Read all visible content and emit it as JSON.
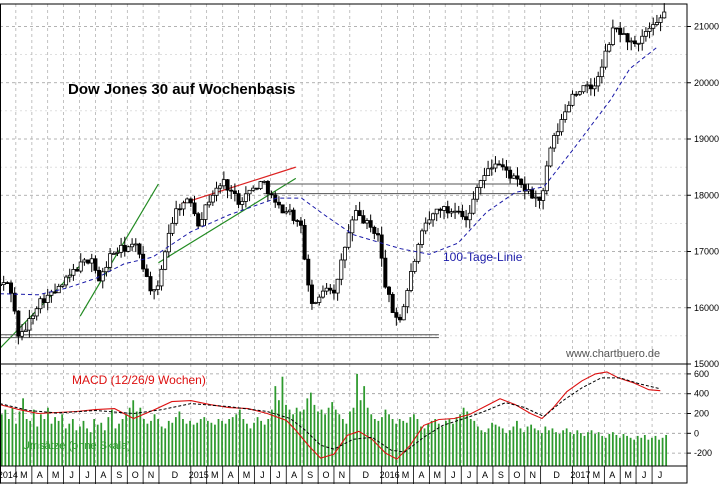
{
  "chart_data": [
    {
      "type": "candlestick",
      "title": "Dow Jones 30 auf Wochenbasis",
      "watermark": "www.chartbuero.de",
      "ylim": [
        15000,
        21400
      ],
      "yticks": [
        15000,
        16000,
        17000,
        18000,
        19000,
        20000,
        21000
      ],
      "grid": true,
      "grid_style": "dashed",
      "candle_colors": {
        "up": "#ffffff",
        "down": "#000000",
        "outline": "#000000"
      },
      "series": [
        {
          "name": "100-Tage-Linie",
          "color": "#1a1aa8",
          "style": "dashed",
          "points": [
            [
              2014.0,
              16250
            ],
            [
              2014.2,
              16230
            ],
            [
              2014.35,
              16350
            ],
            [
              2014.5,
              16520
            ],
            [
              2014.65,
              16780
            ],
            [
              2014.8,
              16900
            ],
            [
              2015.0,
              17350
            ],
            [
              2015.2,
              17650
            ],
            [
              2015.45,
              17950
            ],
            [
              2015.58,
              17950
            ],
            [
              2015.7,
              17650
            ],
            [
              2015.85,
              17300
            ],
            [
              2016.0,
              17150
            ],
            [
              2016.1,
              17050
            ],
            [
              2016.25,
              16950
            ],
            [
              2016.4,
              17150
            ],
            [
              2016.55,
              17700
            ],
            [
              2016.7,
              18050
            ],
            [
              2016.85,
              18150
            ],
            [
              2017.0,
              18800
            ],
            [
              2017.2,
              19700
            ],
            [
              2017.3,
              20250
            ],
            [
              2017.45,
              20650
            ]
          ]
        }
      ],
      "lines": [
        {
          "kind": "trend",
          "color": "#228b22",
          "points": [
            [
              2014.0,
              15280
            ],
            [
              2014.42,
              16750
            ]
          ]
        },
        {
          "kind": "trend",
          "color": "#228b22",
          "points": [
            [
              2014.42,
              15850
            ],
            [
              2014.83,
              18200
            ]
          ]
        },
        {
          "kind": "trend",
          "color": "#228b22",
          "points": [
            [
              2014.83,
              16800
            ],
            [
              2015.55,
              18300
            ]
          ]
        },
        {
          "kind": "trend",
          "color": "#dd2222",
          "points": [
            [
              2014.95,
              17850
            ],
            [
              2015.55,
              18500
            ]
          ]
        },
        {
          "kind": "horizontal",
          "color": "#555555",
          "y": 18200,
          "x": [
            2015.38,
            2016.87
          ]
        },
        {
          "kind": "horizontal",
          "color": "#555555",
          "y": 18030,
          "x": [
            2015.38,
            2016.87
          ]
        },
        {
          "kind": "horizontal",
          "color": "#555555",
          "y": 15520,
          "x": [
            2014.0,
            2016.3
          ]
        },
        {
          "kind": "horizontal",
          "color": "#555555",
          "y": 15470,
          "x": [
            2014.0,
            2016.3
          ]
        }
      ],
      "annotations": [
        {
          "text": "100-Tage-Linie",
          "color": "#1a1aa8",
          "at": [
            2016.32,
            16650
          ]
        },
        {
          "text": "Dow Jones 30 auf Wochenbasis",
          "color": "#000000",
          "at": [
            2014.3,
            20800
          ]
        },
        {
          "text": "www.chartbuero.de",
          "color": "#555555",
          "at": [
            2016.92,
            15090
          ]
        }
      ],
      "price_path": [
        [
          2014.0,
          16400
        ],
        [
          2014.05,
          16450
        ],
        [
          2014.1,
          15450
        ],
        [
          2014.13,
          15600
        ],
        [
          2014.2,
          16100
        ],
        [
          2014.3,
          16300
        ],
        [
          2014.4,
          16700
        ],
        [
          2014.48,
          16900
        ],
        [
          2014.52,
          16450
        ],
        [
          2014.58,
          16950
        ],
        [
          2014.64,
          17050
        ],
        [
          2014.72,
          17100
        ],
        [
          2014.78,
          16400
        ],
        [
          2014.82,
          16200
        ],
        [
          2014.88,
          17300
        ],
        [
          2014.93,
          17800
        ],
        [
          2015.0,
          17900
        ],
        [
          2015.04,
          17500
        ],
        [
          2015.1,
          17950
        ],
        [
          2015.17,
          18250
        ],
        [
          2015.25,
          17900
        ],
        [
          2015.32,
          18100
        ],
        [
          2015.38,
          18250
        ],
        [
          2015.45,
          17800
        ],
        [
          2015.52,
          17700
        ],
        [
          2015.58,
          17400
        ],
        [
          2015.62,
          16200
        ],
        [
          2015.65,
          16000
        ],
        [
          2015.7,
          16400
        ],
        [
          2015.76,
          16300
        ],
        [
          2015.8,
          17000
        ],
        [
          2015.86,
          17700
        ],
        [
          2015.92,
          17500
        ],
        [
          2015.98,
          17300
        ],
        [
          2016.02,
          16400
        ],
        [
          2016.06,
          15900
        ],
        [
          2016.1,
          15800
        ],
        [
          2016.16,
          16700
        ],
        [
          2016.22,
          17400
        ],
        [
          2016.3,
          17800
        ],
        [
          2016.35,
          17700
        ],
        [
          2016.4,
          17800
        ],
        [
          2016.45,
          17500
        ],
        [
          2016.5,
          18200
        ],
        [
          2016.55,
          18400
        ],
        [
          2016.6,
          18600
        ],
        [
          2016.66,
          18400
        ],
        [
          2016.72,
          18200
        ],
        [
          2016.78,
          18000
        ],
        [
          2016.84,
          17900
        ],
        [
          2016.88,
          18800
        ],
        [
          2016.94,
          19300
        ],
        [
          2017.0,
          19800
        ],
        [
          2017.05,
          19900
        ],
        [
          2017.1,
          19900
        ],
        [
          2017.14,
          20100
        ],
        [
          2017.18,
          20600
        ],
        [
          2017.22,
          21000
        ],
        [
          2017.28,
          20800
        ],
        [
          2017.34,
          20600
        ],
        [
          2017.38,
          20900
        ],
        [
          2017.44,
          21000
        ],
        [
          2017.48,
          21250
        ]
      ],
      "x_axis": {
        "range": [
          2014.0,
          2017.6
        ],
        "ticks": [
          {
            "x": 2014.0,
            "label": "2014"
          },
          {
            "x": 2014.083,
            "label": "M"
          },
          {
            "x": 2014.167,
            "label": "A"
          },
          {
            "x": 2014.25,
            "label": "M"
          },
          {
            "x": 2014.333,
            "label": "J"
          },
          {
            "x": 2014.417,
            "label": "J"
          },
          {
            "x": 2014.5,
            "label": "A"
          },
          {
            "x": 2014.583,
            "label": "S"
          },
          {
            "x": 2014.667,
            "label": "O"
          },
          {
            "x": 2014.75,
            "label": "N"
          },
          {
            "x": 2014.833,
            "label": "D"
          },
          {
            "x": 2015.0,
            "label": "2015"
          },
          {
            "x": 2015.083,
            "label": "M"
          },
          {
            "x": 2015.167,
            "label": "A"
          },
          {
            "x": 2015.25,
            "label": "M"
          },
          {
            "x": 2015.333,
            "label": "J"
          },
          {
            "x": 2015.417,
            "label": "J"
          },
          {
            "x": 2015.5,
            "label": "A"
          },
          {
            "x": 2015.583,
            "label": "S"
          },
          {
            "x": 2015.667,
            "label": "O"
          },
          {
            "x": 2015.75,
            "label": "N"
          },
          {
            "x": 2015.833,
            "label": "D"
          },
          {
            "x": 2016.0,
            "label": "2016"
          },
          {
            "x": 2016.083,
            "label": "M"
          },
          {
            "x": 2016.167,
            "label": "A"
          },
          {
            "x": 2016.25,
            "label": "M"
          },
          {
            "x": 2016.333,
            "label": "J"
          },
          {
            "x": 2016.417,
            "label": "J"
          },
          {
            "x": 2016.5,
            "label": "A"
          },
          {
            "x": 2016.583,
            "label": "S"
          },
          {
            "x": 2016.667,
            "label": "O"
          },
          {
            "x": 2016.75,
            "label": "N"
          },
          {
            "x": 2016.833,
            "label": "D"
          },
          {
            "x": 2017.0,
            "label": "2017"
          },
          {
            "x": 2017.083,
            "label": "M"
          },
          {
            "x": 2017.167,
            "label": "A"
          },
          {
            "x": 2017.25,
            "label": "M"
          },
          {
            "x": 2017.333,
            "label": "J"
          },
          {
            "x": 2017.417,
            "label": "J"
          }
        ]
      }
    },
    {
      "type": "line+bar",
      "title": "MACD (12/26/9 Wochen)",
      "ylim": [
        -330,
        700
      ],
      "yticks": [
        -200,
        0,
        200,
        400,
        600
      ],
      "grid": true,
      "grid_style": "dashed",
      "series": [
        {
          "name": "MACD (12/26/9 Wochen)",
          "color": "#dd1111",
          "style": "solid",
          "points": [
            [
              2014.0,
              290
            ],
            [
              2014.1,
              240
            ],
            [
              2014.2,
              200
            ],
            [
              2014.3,
              210
            ],
            [
              2014.4,
              220
            ],
            [
              2014.5,
              240
            ],
            [
              2014.6,
              250
            ],
            [
              2014.7,
              150
            ],
            [
              2014.8,
              230
            ],
            [
              2014.9,
              320
            ],
            [
              2015.0,
              330
            ],
            [
              2015.1,
              290
            ],
            [
              2015.2,
              260
            ],
            [
              2015.3,
              250
            ],
            [
              2015.4,
              200
            ],
            [
              2015.5,
              130
            ],
            [
              2015.55,
              30
            ],
            [
              2015.62,
              -130
            ],
            [
              2015.68,
              -250
            ],
            [
              2015.75,
              -210
            ],
            [
              2015.82,
              -20
            ],
            [
              2015.88,
              20
            ],
            [
              2015.95,
              -60
            ],
            [
              2016.02,
              -200
            ],
            [
              2016.08,
              -260
            ],
            [
              2016.15,
              -120
            ],
            [
              2016.22,
              80
            ],
            [
              2016.3,
              140
            ],
            [
              2016.38,
              150
            ],
            [
              2016.46,
              190
            ],
            [
              2016.55,
              280
            ],
            [
              2016.62,
              350
            ],
            [
              2016.7,
              290
            ],
            [
              2016.78,
              200
            ],
            [
              2016.84,
              150
            ],
            [
              2016.9,
              260
            ],
            [
              2016.97,
              420
            ],
            [
              2017.05,
              530
            ],
            [
              2017.12,
              600
            ],
            [
              2017.18,
              620
            ],
            [
              2017.24,
              560
            ],
            [
              2017.32,
              510
            ],
            [
              2017.4,
              440
            ],
            [
              2017.46,
              430
            ]
          ]
        },
        {
          "name": "",
          "color": "#000000",
          "style": "dashed",
          "points": [
            [
              2014.0,
              300
            ],
            [
              2014.15,
              230
            ],
            [
              2014.3,
              205
            ],
            [
              2014.5,
              230
            ],
            [
              2014.7,
              200
            ],
            [
              2014.85,
              240
            ],
            [
              2015.0,
              300
            ],
            [
              2015.2,
              270
            ],
            [
              2015.4,
              220
            ],
            [
              2015.52,
              150
            ],
            [
              2015.6,
              30
            ],
            [
              2015.68,
              -120
            ],
            [
              2015.75,
              -160
            ],
            [
              2015.85,
              -60
            ],
            [
              2015.95,
              -40
            ],
            [
              2016.05,
              -170
            ],
            [
              2016.12,
              -190
            ],
            [
              2016.22,
              -40
            ],
            [
              2016.32,
              80
            ],
            [
              2016.45,
              160
            ],
            [
              2016.55,
              230
            ],
            [
              2016.65,
              310
            ],
            [
              2016.75,
              260
            ],
            [
              2016.85,
              170
            ],
            [
              2016.95,
              330
            ],
            [
              2017.05,
              460
            ],
            [
              2017.15,
              560
            ],
            [
              2017.25,
              560
            ],
            [
              2017.35,
              500
            ],
            [
              2017.46,
              450
            ]
          ]
        }
      ],
      "volume_label": "Umsätze (ohne Skala)",
      "volume_color": "#2e9a2e",
      "volume_relative": [
        0.55,
        0.6,
        0.5,
        0.62,
        0.45,
        0.58,
        0.72,
        0.5,
        0.48,
        0.6,
        0.42,
        0.55,
        0.5,
        0.62,
        0.45,
        0.52,
        0.48,
        0.55,
        0.4,
        0.45,
        0.5,
        0.38,
        0.42,
        0.48,
        0.4,
        0.36,
        0.5,
        0.44,
        0.46,
        0.38,
        0.52,
        0.6,
        0.4,
        0.45,
        0.5,
        0.55,
        0.62,
        0.7,
        0.58,
        0.62,
        0.5,
        0.45,
        0.48,
        0.55,
        0.5,
        0.42,
        0.4,
        0.48,
        0.46,
        0.52,
        0.58,
        0.5,
        0.45,
        0.48,
        0.44,
        0.46,
        0.5,
        0.52,
        0.48,
        0.46,
        0.44,
        0.5,
        0.48,
        0.45,
        0.5,
        0.52,
        0.55,
        0.6,
        0.5,
        0.45,
        0.4,
        0.46,
        0.52,
        0.48,
        0.44,
        0.5,
        0.6,
        0.85,
        0.7,
        0.95,
        0.65,
        0.6,
        0.55,
        0.62,
        0.58,
        0.6,
        0.72,
        0.78,
        0.65,
        0.58,
        0.6,
        0.55,
        0.62,
        0.68,
        0.6,
        0.55,
        0.5,
        0.45,
        0.58,
        0.62,
        0.98,
        0.7,
        0.85,
        0.62,
        0.55,
        0.5,
        0.48,
        0.52,
        0.6,
        0.55,
        0.5,
        0.45,
        0.5,
        0.48,
        0.46,
        0.52,
        0.55,
        0.5,
        0.42,
        0.4,
        0.45,
        0.48,
        0.5,
        0.45,
        0.42,
        0.48,
        0.5,
        0.45,
        0.52,
        0.55,
        0.62,
        0.58,
        0.5,
        0.48,
        0.42,
        0.38,
        0.36,
        0.4,
        0.46,
        0.44,
        0.42,
        0.4,
        0.35,
        0.38,
        0.42,
        0.48,
        0.4,
        0.36,
        0.42,
        0.44,
        0.4,
        0.38,
        0.35,
        0.42,
        0.38,
        0.4,
        0.36,
        0.34,
        0.38,
        0.4,
        0.36,
        0.34,
        0.38,
        0.35,
        0.32,
        0.36,
        0.38,
        0.34,
        0.36,
        0.32,
        0.3,
        0.34,
        0.36,
        0.33,
        0.3,
        0.34,
        0.32,
        0.3,
        0.28,
        0.32,
        0.3,
        0.33,
        0.28,
        0.3,
        0.32,
        0.28,
        0.3,
        0.33
      ]
    }
  ]
}
